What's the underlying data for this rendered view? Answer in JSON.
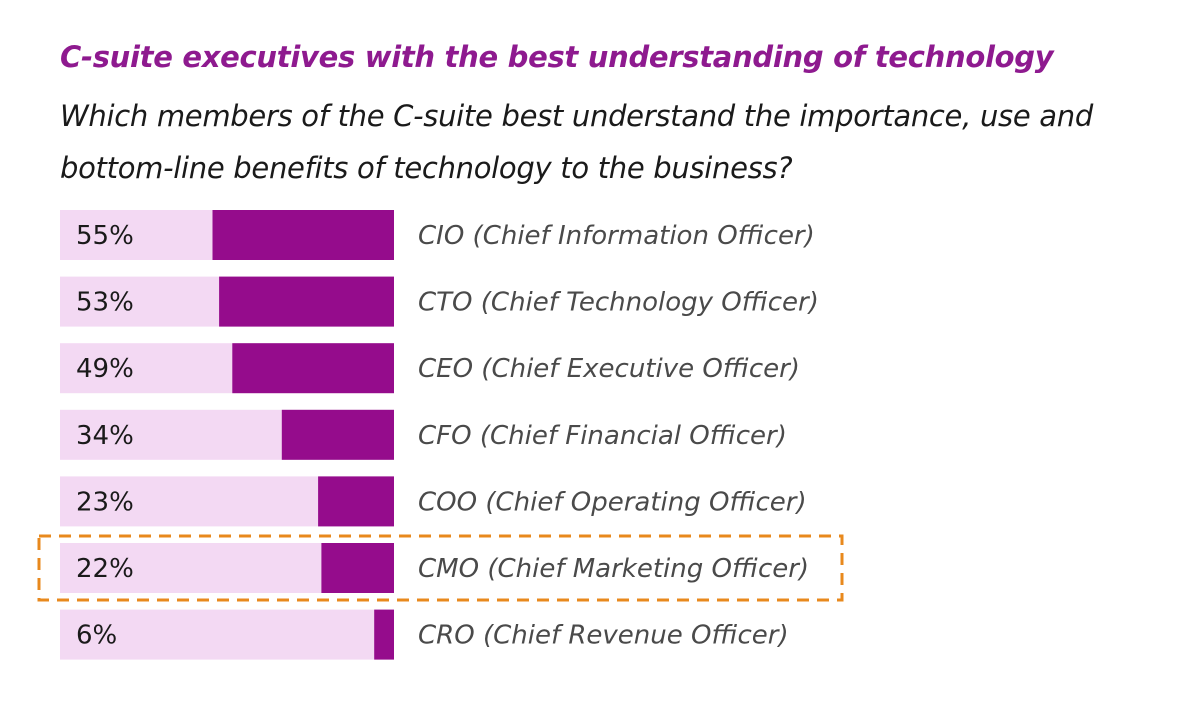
{
  "title": "C-suite executives with the best understanding of technology",
  "subtitle": "Which members of the C-suite best understand the importance, use and bottom-line benefits of technology to the business?",
  "colors": {
    "title": "#8e1a8f",
    "bar_fill": "#950c8c",
    "bar_track": "#f3d9f3",
    "highlight_border": "#e8891d"
  },
  "chart_data": {
    "type": "bar",
    "orientation": "horizontal",
    "categories": [
      "CIO (Chief Information Officer)",
      "CTO (Chief Technology Officer)",
      "CEO (Chief Executive Officer)",
      "CFO (Chief Financial Officer)",
      "COO (Chief Operating Officer)",
      "CMO (Chief Marketing Officer)",
      "CRO (Chief Revenue Officer)"
    ],
    "values": [
      55,
      53,
      49,
      34,
      23,
      22,
      6
    ],
    "value_labels": [
      "55%",
      "53%",
      "49%",
      "34%",
      "23%",
      "22%",
      "6%"
    ],
    "unit": "%",
    "highlighted_category": "CMO (Chief Marketing Officer)",
    "xlim": [
      0,
      100
    ],
    "grid": false
  }
}
